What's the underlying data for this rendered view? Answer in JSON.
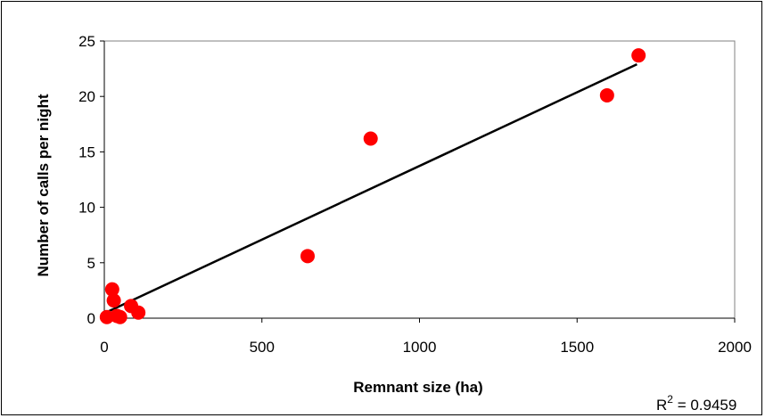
{
  "chart_data": {
    "type": "scatter",
    "title": "",
    "xlabel": "Remnant size (ha)",
    "ylabel": "Number of calls per night",
    "xlim": [
      0,
      2000
    ],
    "ylim": [
      0,
      25
    ],
    "x_ticks": [
      0,
      500,
      1000,
      1500,
      2000
    ],
    "y_ticks": [
      0,
      5,
      10,
      15,
      20,
      25
    ],
    "grid": false,
    "legend": "none",
    "points": [
      {
        "x": 8,
        "y": 0.1
      },
      {
        "x": 25,
        "y": 2.6
      },
      {
        "x": 30,
        "y": 1.6
      },
      {
        "x": 40,
        "y": 0.2
      },
      {
        "x": 50,
        "y": 0.1
      },
      {
        "x": 85,
        "y": 1.1
      },
      {
        "x": 108,
        "y": 0.5
      },
      {
        "x": 645,
        "y": 5.6
      },
      {
        "x": 845,
        "y": 16.2
      },
      {
        "x": 1595,
        "y": 20.1
      },
      {
        "x": 1695,
        "y": 23.7
      }
    ],
    "trendline": {
      "x": [
        12,
        1690
      ],
      "y": [
        0.6,
        22.9
      ]
    },
    "annotation": {
      "r2_prefix": "R",
      "r2_sup": "2",
      "r2_value": " = 0.9459"
    },
    "colors": {
      "marker": "#ff0000",
      "trendline": "#000000",
      "plot_border": "#808080"
    }
  }
}
